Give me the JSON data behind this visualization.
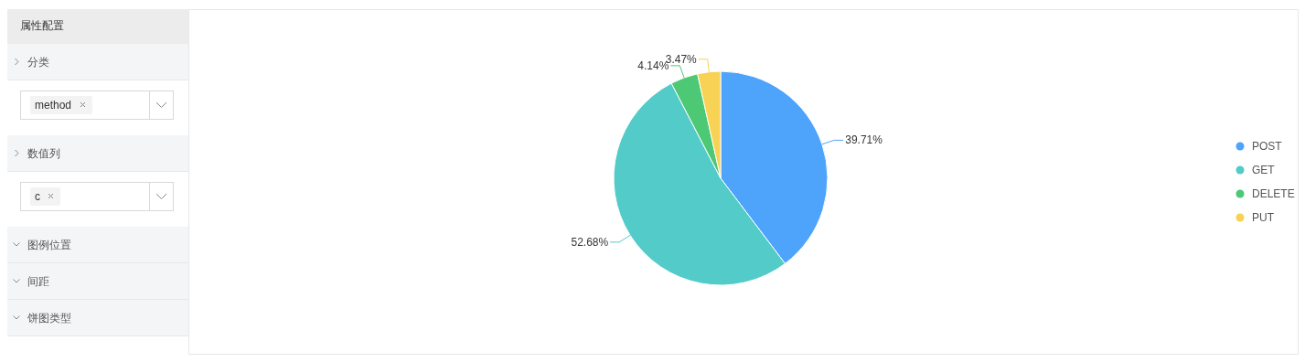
{
  "chart_data": [
    {
      "type": "other",
      "title": "属性配置",
      "annotations": [
        "分类",
        "method",
        "数值列",
        "c",
        "图例位置",
        "间距",
        "饼图类型"
      ]
    },
    {
      "type": "pie",
      "categories": [
        "POST",
        "GET",
        "DELETE",
        "PUT"
      ],
      "values": [
        39.71,
        52.68,
        4.14,
        3.47
      ],
      "colors": [
        "#4ea3fb",
        "#53cbc9",
        "#4dc874",
        "#f7d254"
      ],
      "value_labels": [
        "39.71%",
        "52.68%",
        "4.14%",
        "3.47%"
      ],
      "legend": "right"
    }
  ]
}
